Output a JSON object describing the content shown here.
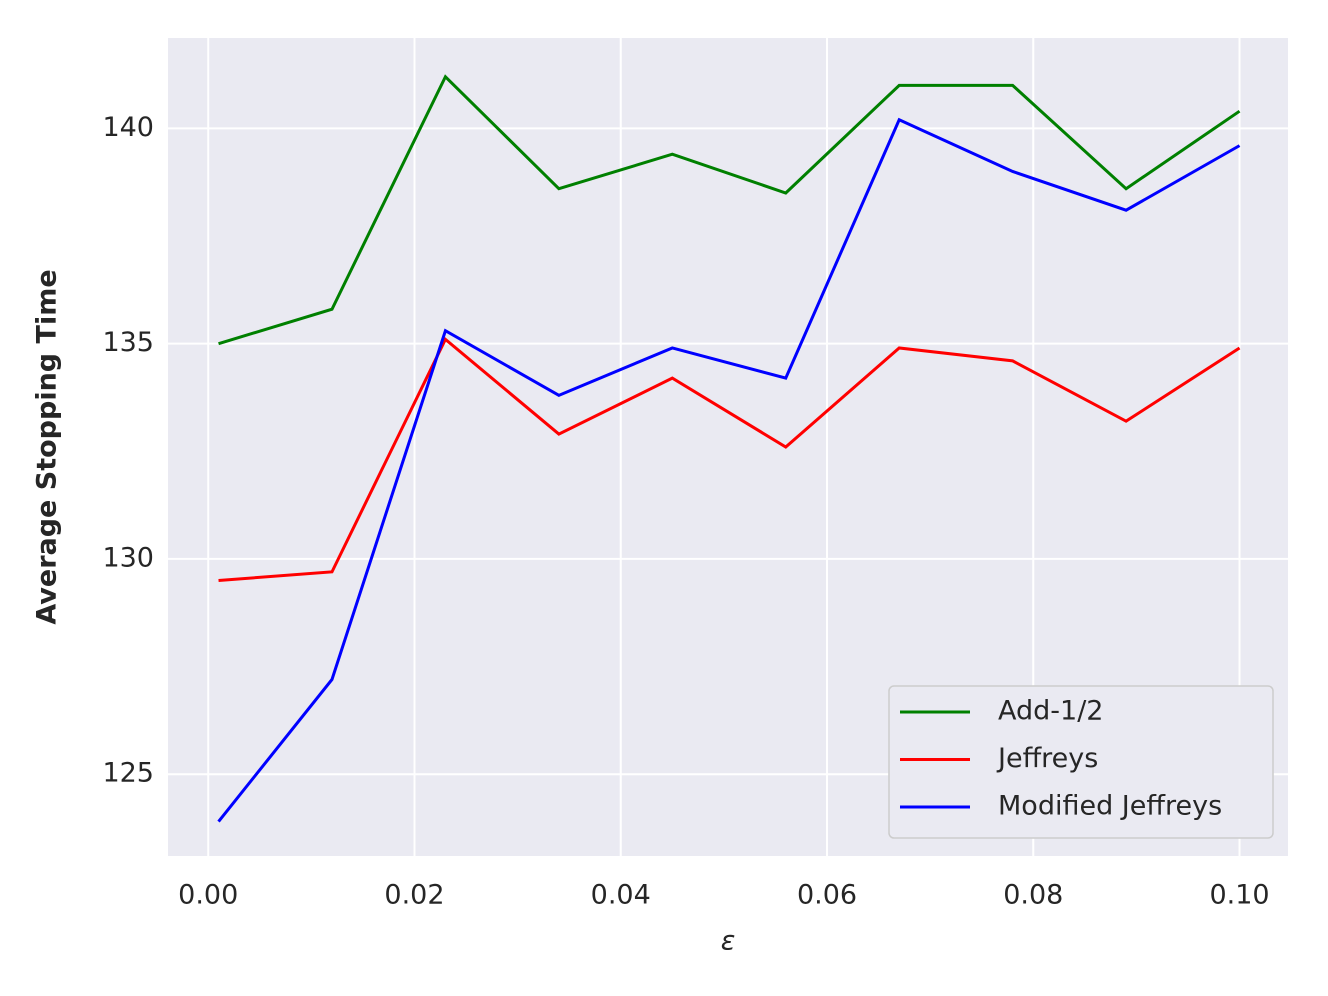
{
  "chart_data": {
    "type": "line",
    "xlabel": "ε",
    "ylabel": "Average Stopping Time",
    "x": [
      0.001,
      0.012,
      0.023,
      0.034,
      0.045,
      0.056,
      0.067,
      0.078,
      0.089,
      0.1
    ],
    "series": [
      {
        "name": "Add-1/2",
        "color": "#008000",
        "values": [
          135.0,
          135.8,
          141.2,
          138.6,
          139.4,
          138.5,
          141.0,
          141.0,
          138.6,
          140.4
        ]
      },
      {
        "name": "Jeffreys",
        "color": "#ff0000",
        "values": [
          129.5,
          129.7,
          135.1,
          132.9,
          134.2,
          132.6,
          134.9,
          134.6,
          133.2,
          134.9
        ]
      },
      {
        "name": "Modified Jeffreys",
        "color": "#0000ff",
        "values": [
          123.9,
          127.2,
          135.3,
          133.8,
          134.9,
          134.2,
          140.2,
          139.0,
          138.1,
          139.6
        ]
      }
    ],
    "xlim": [
      -0.0039,
      0.1047
    ],
    "ylim": [
      123.1,
      142.1
    ],
    "xticks": [
      {
        "value": 0,
        "label": "0.00"
      },
      {
        "value": 0.02,
        "label": "0.02"
      },
      {
        "value": 0.04,
        "label": "0.04"
      },
      {
        "value": 0.06,
        "label": "0.06"
      },
      {
        "value": 0.08,
        "label": "0.08"
      },
      {
        "value": 0.1,
        "label": "0.10"
      }
    ],
    "yticks": [
      125,
      130,
      135,
      140
    ],
    "grid": true,
    "legend": "lower right"
  }
}
